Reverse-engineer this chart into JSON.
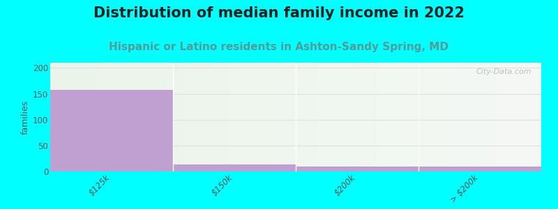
{
  "title": "Distribution of median family income in 2022",
  "subtitle": "Hispanic or Latino residents in Ashton-Sandy Spring, MD",
  "categories": [
    "$125k",
    "$150k",
    "$200k",
    "> $200k"
  ],
  "values": [
    157,
    13,
    9,
    9
  ],
  "bar_color": "#c0a0d0",
  "background_color": "#00ffff",
  "plot_bg_left": "#eaf5ea",
  "plot_bg_right": "#f8f8f8",
  "ylabel": "families",
  "ylim": [
    0,
    210
  ],
  "yticks": [
    0,
    50,
    100,
    150,
    200
  ],
  "title_fontsize": 15,
  "subtitle_fontsize": 11,
  "subtitle_color": "#559999",
  "watermark": "City-Data.com",
  "tick_color": "#555555",
  "grid_color": "#dddddd"
}
